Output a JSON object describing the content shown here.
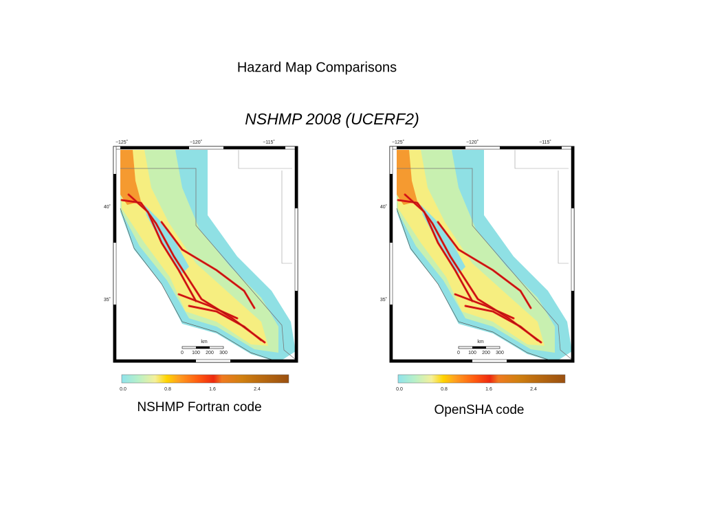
{
  "title": "Hazard Map Comparisons",
  "subtitle": "NSHMP 2008 (UCERF2)",
  "maps": [
    {
      "lon_labels": [
        "−125˚",
        "−120˚",
        "−115˚"
      ],
      "lat_labels": [
        "40˚",
        "35˚"
      ],
      "scale_unit": "km",
      "scale_labels": [
        "0",
        "100",
        "200",
        "300"
      ],
      "colorbar_labels": [
        "0.0",
        "0.8",
        "1.6",
        "2.4"
      ],
      "caption": "NSHMP Fortran code"
    },
    {
      "lon_labels": [
        "−125˚",
        "−120˚",
        "−115˚"
      ],
      "lat_labels": [
        "40˚",
        "35˚"
      ],
      "scale_unit": "km",
      "scale_labels": [
        "0",
        "100",
        "200",
        "300"
      ],
      "colorbar_labels": [
        "0.0",
        "0.8",
        "1.6",
        "2.4"
      ],
      "caption": "OpenSHA code"
    }
  ]
}
